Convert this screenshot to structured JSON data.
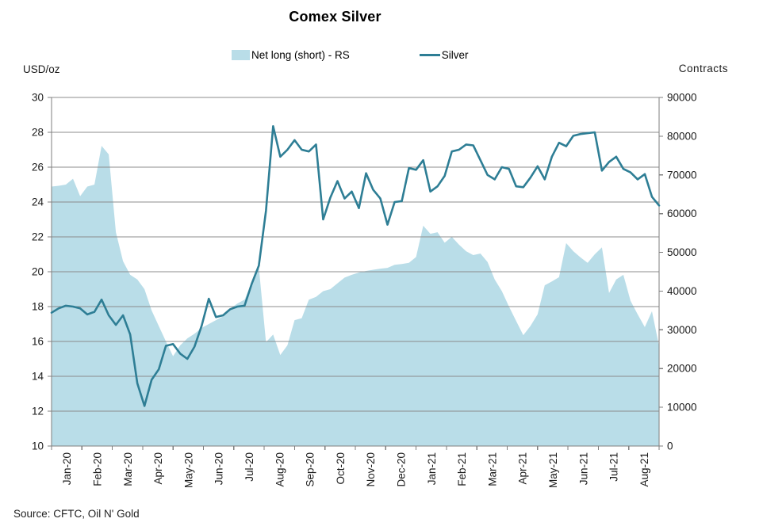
{
  "title": "Comex Silver",
  "source_note": "Source: CFTC, Oil N' Gold",
  "legend": [
    {
      "label": "Net long (short) - RS",
      "swatch": "area-swatch",
      "color": "#b9dde8"
    },
    {
      "label": "Silver",
      "swatch": "line-swatch",
      "color": "#2e7e95"
    }
  ],
  "colors": {
    "background": "#ffffff",
    "area_fill": "#b9dde8",
    "line_stroke": "#2e7e95",
    "gridline": "#8c8c8c",
    "axis": "#7f7f7f",
    "tick_text": "#1a1a1a"
  },
  "chart_data": {
    "type": "combo-area-line",
    "grid": true,
    "legend_position": "top",
    "x_categories": [
      "Jan-20",
      "Feb-20",
      "Mar-20",
      "Apr-20",
      "May-20",
      "Jun-20",
      "Jul-20",
      "Aug-20",
      "Sep-20",
      "Oct-20",
      "Nov-20",
      "Dec-20",
      "Jan-21",
      "Feb-21",
      "Mar-21",
      "Apr-21",
      "May-21",
      "Jun-21",
      "Jul-21",
      "Aug-21"
    ],
    "left_axis": {
      "title": "USD/oz",
      "min": 10,
      "max": 30,
      "step": 2,
      "tick_labels": [
        "10",
        "12",
        "14",
        "16",
        "18",
        "20",
        "22",
        "24",
        "26",
        "28",
        "30"
      ]
    },
    "right_axis": {
      "title": "Contracts",
      "min": 0,
      "max": 90000,
      "step": 10000,
      "tick_labels": [
        "0",
        "10000",
        "20000",
        "30000",
        "40000",
        "50000",
        "60000",
        "70000",
        "80000",
        "90000"
      ]
    },
    "series": [
      {
        "name": "Net long (short) - RS",
        "type": "area",
        "axis": "right",
        "color": "#b9dde8",
        "values": [
          67000,
          67200,
          67500,
          69000,
          64500,
          67000,
          67500,
          77500,
          75300,
          55200,
          47700,
          44200,
          43000,
          40500,
          35000,
          31000,
          27000,
          23200,
          26000,
          27800,
          29000,
          30500,
          31500,
          32500,
          33500,
          35500,
          36800,
          37800,
          42000,
          46200,
          26800,
          28800,
          23500,
          26000,
          32500,
          33000,
          37800,
          38500,
          40000,
          40500,
          42000,
          43500,
          44200,
          44800,
          45200,
          45500,
          45800,
          46000,
          46800,
          47000,
          47300,
          48800,
          56900,
          54800,
          55200,
          52500,
          54000,
          52000,
          50300,
          49300,
          49700,
          47500,
          43000,
          40000,
          36000,
          32300,
          28600,
          31000,
          34000,
          41500,
          42500,
          43600,
          52400,
          50300,
          48700,
          47300,
          49500,
          51300,
          39500,
          43000,
          44200,
          37500,
          34000,
          30700,
          34800,
          25800
        ]
      },
      {
        "name": "Silver",
        "type": "line",
        "axis": "left",
        "color": "#2e7e95",
        "values": [
          17.65,
          17.9,
          18.05,
          18.0,
          17.9,
          17.55,
          17.7,
          18.4,
          17.5,
          16.95,
          17.5,
          16.4,
          13.6,
          12.3,
          13.8,
          14.4,
          15.75,
          15.85,
          15.3,
          15.0,
          15.7,
          16.9,
          18.45,
          17.4,
          17.5,
          17.85,
          18.0,
          18.05,
          19.3,
          20.35,
          23.5,
          28.35,
          26.6,
          27.0,
          27.55,
          27.0,
          26.9,
          27.3,
          23.0,
          24.25,
          25.2,
          24.2,
          24.6,
          23.65,
          25.65,
          24.7,
          24.2,
          22.7,
          24.0,
          24.05,
          25.95,
          25.85,
          26.4,
          24.6,
          24.9,
          25.5,
          26.9,
          27.0,
          27.3,
          27.25,
          26.4,
          25.55,
          25.3,
          26.0,
          25.9,
          24.9,
          24.85,
          25.4,
          26.05,
          25.3,
          26.6,
          27.4,
          27.2,
          27.8,
          27.9,
          27.95,
          28.0,
          25.8,
          26.3,
          26.6,
          25.9,
          25.7,
          25.3,
          25.6,
          24.3,
          23.8
        ]
      }
    ]
  }
}
